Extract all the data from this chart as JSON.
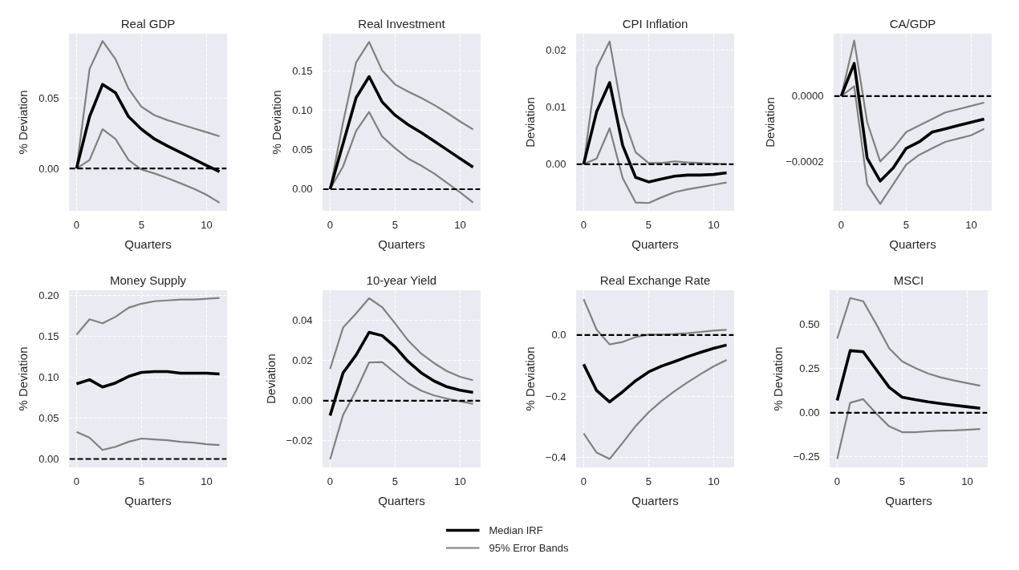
{
  "chart_data": [
    {
      "type": "line",
      "title": "Real GDP",
      "xlabel": "Quarters",
      "ylabel": "% Deviation",
      "x": [
        0,
        1,
        2,
        3,
        4,
        5,
        6,
        7,
        8,
        9,
        10,
        11
      ],
      "xlim": [
        -0.55,
        11.55
      ],
      "xticks": [
        0,
        5,
        10
      ],
      "ylim": [
        -0.03,
        0.096
      ],
      "yticks": [
        {
          "value": 0,
          "label": "0.00"
        },
        0.05
      ],
      "grid": true,
      "legend": "bottom",
      "ref_lines": [
        {
          "axis": "y",
          "value": 0,
          "color": "#000000",
          "line_style": "dashed"
        }
      ],
      "series": [
        {
          "name": "Median IRF",
          "color": "#000000",
          "values": [
            0,
            0.037,
            0.06,
            0.054,
            0.037,
            0.028,
            0.021,
            0.016,
            0.0115,
            0.0068,
            0.0021,
            -0.0023
          ]
        },
        {
          "name": "95% Error Bands",
          "color": "#808080",
          "values": [
            0,
            0.071,
            0.091,
            0.078,
            0.057,
            0.044,
            0.038,
            0.0345,
            0.0316,
            0.0287,
            0.0259,
            0.023
          ]
        },
        {
          "color": "#808080",
          "values": [
            0,
            0.006,
            0.028,
            0.021,
            0.006,
            -0.0008,
            -0.0036,
            -0.007,
            -0.0106,
            -0.0144,
            -0.0188,
            -0.0245
          ]
        }
      ]
    },
    {
      "type": "line",
      "title": "Real Investment",
      "xlabel": "Quarters",
      "ylabel": "% Deviation",
      "x": [
        0,
        1,
        2,
        3,
        4,
        5,
        6,
        7,
        8,
        9,
        10,
        11
      ],
      "xlim": [
        -0.55,
        11.55
      ],
      "xticks": [
        0,
        5,
        10
      ],
      "ylim": [
        -0.027,
        0.197
      ],
      "yticks": [
        {
          "value": 0,
          "label": "0.00"
        },
        0.05,
        {
          "value": 0.1,
          "label": "0.10"
        },
        0.15
      ],
      "grid": true,
      "ref_lines": [
        {
          "axis": "y",
          "value": 0,
          "color": "#000000",
          "line_style": "dashed"
        }
      ],
      "series": [
        {
          "color": "#000000",
          "values": [
            0,
            0.058,
            0.116,
            0.143,
            0.111,
            0.094,
            0.082,
            0.072,
            0.061,
            0.05,
            0.039,
            0.028
          ]
        },
        {
          "color": "#808080",
          "values": [
            0,
            0.085,
            0.161,
            0.187,
            0.151,
            0.133,
            0.124,
            0.116,
            0.107,
            0.097,
            0.086,
            0.076
          ]
        },
        {
          "color": "#808080",
          "values": [
            0,
            0.029,
            0.074,
            0.098,
            0.067,
            0.052,
            0.039,
            0.03,
            0.02,
            0.008,
            -0.004,
            -0.017
          ]
        }
      ]
    },
    {
      "type": "line",
      "title": "CPI Inflation",
      "xlabel": "Quarters",
      "ylabel": "Deviation",
      "x": [
        0,
        1,
        2,
        3,
        4,
        5,
        6,
        7,
        8,
        9,
        10,
        11
      ],
      "xlim": [
        -0.55,
        11.55
      ],
      "xticks": [
        0,
        5,
        10
      ],
      "ylim": [
        -0.0081,
        0.0228
      ],
      "yticks": [
        {
          "value": 0,
          "label": "0.00"
        },
        0.01,
        0.02
      ],
      "grid": true,
      "ref_lines": [
        {
          "axis": "y",
          "value": 0,
          "color": "#000000",
          "line_style": "dashed"
        }
      ],
      "series": [
        {
          "color": "#000000",
          "values": [
            0,
            0.0092,
            0.0143,
            0.0033,
            -0.0023,
            -0.0031,
            -0.0026,
            -0.0021,
            -0.0019,
            -0.0019,
            -0.0018,
            -0.0015
          ]
        },
        {
          "color": "#808080",
          "values": [
            0,
            0.0169,
            0.0215,
            0.0086,
            0.0021,
            0.0002,
            0.0002,
            0.0005,
            0.0003,
            0.0002,
            0.0001,
            0.0
          ]
        },
        {
          "color": "#808080",
          "values": [
            0,
            0.001,
            0.0063,
            -0.0024,
            -0.0067,
            -0.0068,
            -0.0058,
            -0.0049,
            -0.0044,
            -0.004,
            -0.0036,
            -0.0032
          ]
        }
      ]
    },
    {
      "type": "line",
      "title": "CA/GDP",
      "xlabel": "Quarters",
      "ylabel": "Deviation",
      "x": [
        0,
        1,
        2,
        3,
        4,
        5,
        6,
        7,
        8,
        9,
        10,
        11
      ],
      "xlim": [
        -0.55,
        11.55
      ],
      "xticks": [
        0,
        5,
        10
      ],
      "ylim": [
        -0.00035,
        0.00019
      ],
      "yticks": [
        {
          "value": -0.0002,
          "label": "−0.0002"
        },
        {
          "value": 0,
          "label": "0.0000"
        }
      ],
      "grid": true,
      "ref_lines": [
        {
          "axis": "y",
          "value": 0,
          "color": "#000000",
          "line_style": "dashed"
        }
      ],
      "series": [
        {
          "color": "#000000",
          "values": [
            0,
            0.0001,
            -0.00019,
            -0.00026,
            -0.00022,
            -0.00016,
            -0.00014,
            -0.00011,
            -0.0001,
            -9e-05,
            -8e-05,
            -7e-05
          ]
        },
        {
          "color": "#808080",
          "values": [
            0,
            0.00017,
            -8e-05,
            -0.0002,
            -0.00016,
            -0.00011,
            -9e-05,
            -7e-05,
            -5e-05,
            -4e-05,
            -3e-05,
            -2e-05
          ]
        },
        {
          "color": "#808080",
          "values": [
            0,
            3e-05,
            -0.00027,
            -0.00033,
            -0.00027,
            -0.00021,
            -0.00018,
            -0.00016,
            -0.00014,
            -0.00013,
            -0.00012,
            -0.0001
          ]
        }
      ]
    },
    {
      "type": "line",
      "title": "Money Supply",
      "xlabel": "Quarters",
      "ylabel": "% Deviation",
      "x": [
        0,
        1,
        2,
        3,
        4,
        5,
        6,
        7,
        8,
        9,
        10,
        11
      ],
      "xlim": [
        -0.55,
        11.55
      ],
      "xticks": [
        0,
        5,
        10
      ],
      "ylim": [
        -0.0098,
        0.206
      ],
      "yticks": [
        {
          "value": 0,
          "label": "0.00"
        },
        0.05,
        {
          "value": 0.1,
          "label": "0.10"
        },
        0.15,
        {
          "value": 0.2,
          "label": "0.20"
        }
      ],
      "grid": true,
      "ref_lines": [
        {
          "axis": "y",
          "value": 0,
          "color": "#000000",
          "line_style": "dashed"
        }
      ],
      "series": [
        {
          "color": "#000000",
          "values": [
            0.092,
            0.097,
            0.088,
            0.093,
            0.101,
            0.106,
            0.107,
            0.107,
            0.105,
            0.105,
            0.105,
            0.104
          ]
        },
        {
          "color": "#808080",
          "values": [
            0.152,
            0.171,
            0.166,
            0.174,
            0.185,
            0.19,
            0.193,
            0.194,
            0.195,
            0.195,
            0.196,
            0.197
          ]
        },
        {
          "color": "#808080",
          "values": [
            0.033,
            0.026,
            0.011,
            0.015,
            0.021,
            0.025,
            0.024,
            0.023,
            0.021,
            0.02,
            0.018,
            0.017
          ]
        }
      ]
    },
    {
      "type": "line",
      "title": "10-year Yield",
      "xlabel": "Quarters",
      "ylabel": "Deviation",
      "x": [
        0,
        1,
        2,
        3,
        4,
        5,
        6,
        7,
        8,
        9,
        10,
        11
      ],
      "xlim": [
        -0.55,
        11.55
      ],
      "xticks": [
        0,
        5,
        10
      ],
      "ylim": [
        -0.033,
        0.0548
      ],
      "yticks": [
        {
          "value": -0.02,
          "label": "−0.02"
        },
        {
          "value": 0,
          "label": "0.00"
        },
        0.02,
        0.04
      ],
      "grid": true,
      "ref_lines": [
        {
          "axis": "y",
          "value": 0,
          "color": "#000000",
          "line_style": "dashed"
        }
      ],
      "series": [
        {
          "color": "#000000",
          "values": [
            -0.0074,
            0.0139,
            0.0227,
            0.034,
            0.0324,
            0.0268,
            0.0195,
            0.0139,
            0.0098,
            0.0069,
            0.0052,
            0.0041
          ]
        },
        {
          "color": "#808080",
          "values": [
            0.0158,
            0.0364,
            0.0434,
            0.051,
            0.0466,
            0.0385,
            0.03,
            0.0235,
            0.0187,
            0.0147,
            0.0119,
            0.0102
          ]
        },
        {
          "color": "#808080",
          "values": [
            -0.0292,
            -0.0071,
            0.005,
            0.019,
            0.0192,
            0.0139,
            0.0087,
            0.005,
            0.0026,
            0.001,
            -0.0003,
            -0.0015
          ]
        }
      ]
    },
    {
      "type": "line",
      "title": "Real Exchange Rate",
      "xlabel": "Quarters",
      "ylabel": "% Deviation",
      "x": [
        0,
        1,
        2,
        3,
        4,
        5,
        6,
        7,
        8,
        9,
        10,
        11
      ],
      "xlim": [
        -0.55,
        11.55
      ],
      "xticks": [
        0,
        5,
        10
      ],
      "ylim": [
        -0.432,
        0.145
      ],
      "yticks": [
        {
          "value": -0.4,
          "label": "−0.4"
        },
        {
          "value": -0.2,
          "label": "−0.2"
        },
        {
          "value": 0,
          "label": "0.0"
        }
      ],
      "grid": true,
      "ref_lines": [
        {
          "axis": "y",
          "value": 0,
          "color": "#000000",
          "line_style": "dashed"
        }
      ],
      "series": [
        {
          "color": "#000000",
          "values": [
            -0.096,
            -0.182,
            -0.219,
            -0.186,
            -0.15,
            -0.121,
            -0.102,
            -0.087,
            -0.071,
            -0.057,
            -0.044,
            -0.033
          ]
        },
        {
          "color": "#808080",
          "values": [
            0.117,
            0.017,
            -0.031,
            -0.023,
            -0.007,
            0.001,
            0.001,
            0.003,
            0.006,
            0.01,
            0.014,
            0.017
          ]
        },
        {
          "color": "#808080",
          "values": [
            -0.322,
            -0.385,
            -0.406,
            -0.353,
            -0.298,
            -0.253,
            -0.216,
            -0.184,
            -0.155,
            -0.128,
            -0.103,
            -0.082
          ]
        }
      ]
    },
    {
      "type": "line",
      "title": "MSCI",
      "xlabel": "Quarters",
      "ylabel": "% Deviation",
      "x": [
        0,
        1,
        2,
        3,
        4,
        5,
        6,
        7,
        8,
        9,
        10,
        11
      ],
      "xlim": [
        -0.55,
        11.55
      ],
      "xticks": [
        0,
        5,
        10
      ],
      "ylim": [
        -0.307,
        0.692
      ],
      "yticks": [
        {
          "value": -0.25,
          "label": "−0.25"
        },
        {
          "value": 0,
          "label": "0.00"
        },
        0.25,
        {
          "value": 0.5,
          "label": "0.50"
        }
      ],
      "grid": true,
      "ref_lines": [
        {
          "axis": "y",
          "value": 0,
          "color": "#000000",
          "line_style": "dashed"
        }
      ],
      "series": [
        {
          "color": "#000000",
          "values": [
            0.07,
            0.352,
            0.346,
            0.245,
            0.144,
            0.088,
            0.074,
            0.062,
            0.052,
            0.043,
            0.034,
            0.026
          ]
        },
        {
          "color": "#808080",
          "values": [
            0.42,
            0.65,
            0.632,
            0.503,
            0.365,
            0.291,
            0.254,
            0.222,
            0.2,
            0.183,
            0.168,
            0.153
          ]
        },
        {
          "color": "#808080",
          "values": [
            -0.262,
            0.057,
            0.077,
            -0.004,
            -0.077,
            -0.11,
            -0.11,
            -0.105,
            -0.101,
            -0.1,
            -0.096,
            -0.092
          ]
        }
      ]
    }
  ]
}
